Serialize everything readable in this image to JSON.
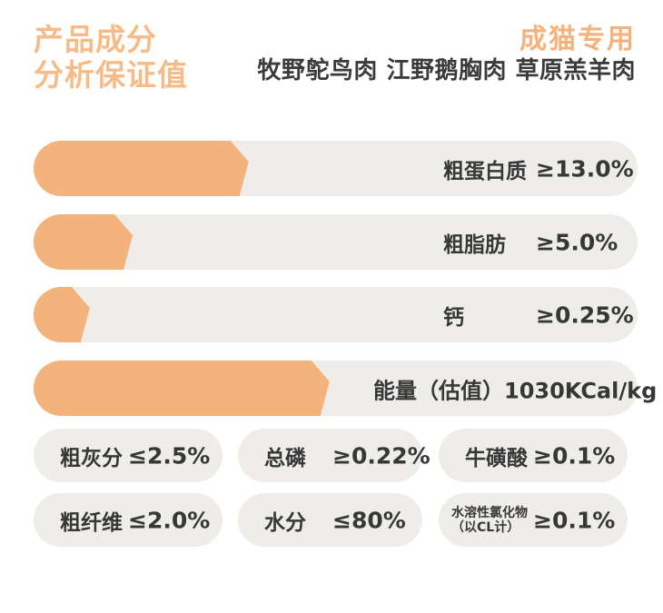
{
  "colors": {
    "title_orange": "#F6BB87",
    "accent_orange": "#F4B37D",
    "bar_background_gray": "#EEEDE9",
    "text_dark": "#373737",
    "page_background": "#FFFFFF"
  },
  "header": {
    "title_line1": "产品成分",
    "title_line2": "分析保证值",
    "badge": "成猫专用",
    "subtitle": "牧野鸵鸟肉 江野鹅胸肉 草原羔羊肉"
  },
  "chart_data": {
    "type": "bar",
    "orientation": "horizontal",
    "title": "产品成分分析保证值",
    "legend_position": "none",
    "grid": false,
    "bars": [
      {
        "label": "粗蛋白质",
        "value_text": "≥13.0%",
        "value_num": 13.0,
        "comparator": "≥",
        "fill_width": "35.6%"
      },
      {
        "label": "粗脂肪",
        "value_text": "≥5.0%",
        "value_num": 5.0,
        "comparator": "≥",
        "fill_width": "16.4%"
      },
      {
        "label": "钙",
        "value_text": "≥0.25%",
        "value_num": 0.25,
        "comparator": "≥",
        "fill_width": "9.3%"
      },
      {
        "label": "能量（估值）",
        "value_text": "1030KCal/kg",
        "value_num": 1030,
        "unit": "KCal/kg",
        "fill_width": "49.0%"
      }
    ],
    "extra_values": [
      {
        "label": "粗灰分",
        "value_text": "≤2.5%",
        "value_num": 2.5
      },
      {
        "label": "总磷",
        "value_text": "≥0.22%",
        "value_num": 0.22
      },
      {
        "label": "牛磺酸",
        "value_text": "≥0.1%",
        "value_num": 0.1
      },
      {
        "label": "粗纤维",
        "value_text": "≤2.0%",
        "value_num": 2.0
      },
      {
        "label": "水分",
        "value_text": "≤80%",
        "value_num": 80
      },
      {
        "label": "水溶性氯化物（以CL计）",
        "value_text": "≥0.1%",
        "value_num": 0.1
      }
    ]
  },
  "pills": [
    {
      "name": "粗灰分",
      "value": "≤2.5%"
    },
    {
      "name": "总磷",
      "value": "≥0.22%"
    },
    {
      "name": "牛磺酸",
      "value": "≥0.1%"
    },
    {
      "name": "粗纤维",
      "value": "≤2.0%"
    },
    {
      "name": "水分",
      "value": "≤80%"
    },
    {
      "name_line1": "水溶性氯化物",
      "name_line2": "（以CL计）",
      "value": "≥0.1%"
    }
  ]
}
